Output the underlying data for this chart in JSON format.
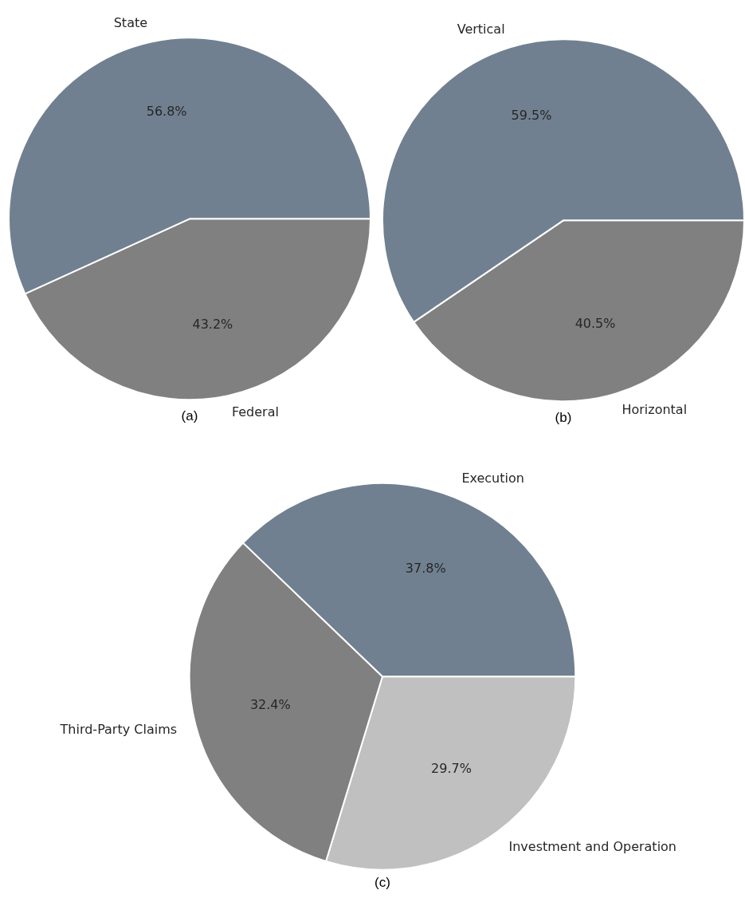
{
  "chart_data": [
    {
      "type": "pie",
      "title": "(a)",
      "categories": [
        "State",
        "Federal"
      ],
      "values": [
        56.8,
        43.2
      ],
      "colors": [
        "#708090",
        "#808080"
      ],
      "value_labels": [
        "56.8%",
        "43.2%"
      ],
      "legend": false
    },
    {
      "type": "pie",
      "title": "(b)",
      "categories": [
        "Vertical",
        "Horizontal"
      ],
      "values": [
        59.5,
        40.5
      ],
      "colors": [
        "#708090",
        "#808080"
      ],
      "value_labels": [
        "59.5%",
        "40.5%"
      ],
      "legend": false
    },
    {
      "type": "pie",
      "title": "(c)",
      "categories": [
        "Execution",
        "Third-Party Claims",
        "Investment and Operation"
      ],
      "values": [
        37.8,
        32.4,
        29.7
      ],
      "colors": [
        "#708090",
        "#808080",
        "#c0c0c0"
      ],
      "value_labels": [
        "37.8%",
        "32.4%",
        "29.7%"
      ],
      "legend": false
    }
  ]
}
